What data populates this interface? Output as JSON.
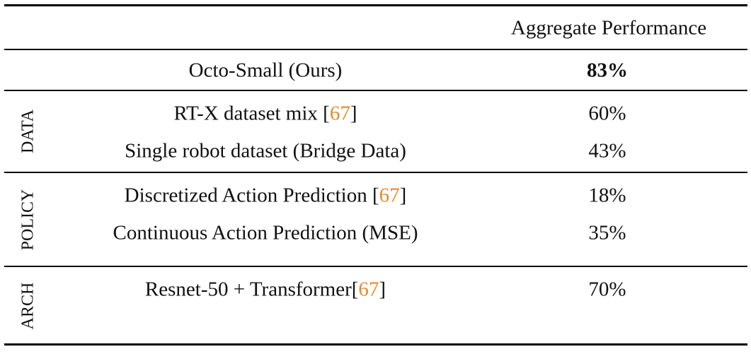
{
  "header": {
    "column": "Aggregate Performance"
  },
  "baseline": {
    "label": "Octo-Small (Ours)",
    "value": "83%"
  },
  "groups": [
    {
      "name": "DATA",
      "rows": [
        {
          "label": [
            {
              "text": "RT-X dataset mix ["
            },
            {
              "text": "67",
              "cite": true
            },
            {
              "text": "]"
            }
          ],
          "value": "60%"
        },
        {
          "label": [
            {
              "text": "Single robot dataset (Bridge Data)"
            }
          ],
          "value": "43%"
        }
      ]
    },
    {
      "name": "POLICY",
      "rows": [
        {
          "label": [
            {
              "text": "Discretized Action Prediction ["
            },
            {
              "text": "67",
              "cite": true
            },
            {
              "text": "]"
            }
          ],
          "value": "18%"
        },
        {
          "label": [
            {
              "text": "Continuous Action Prediction (MSE)"
            }
          ],
          "value": "35%"
        }
      ]
    },
    {
      "name": "ARCH",
      "rows": [
        {
          "label": [
            {
              "text": "Resnet-50 + Transformer["
            },
            {
              "text": "67",
              "cite": true
            },
            {
              "text": "]"
            }
          ],
          "value": "70%"
        }
      ]
    }
  ]
}
